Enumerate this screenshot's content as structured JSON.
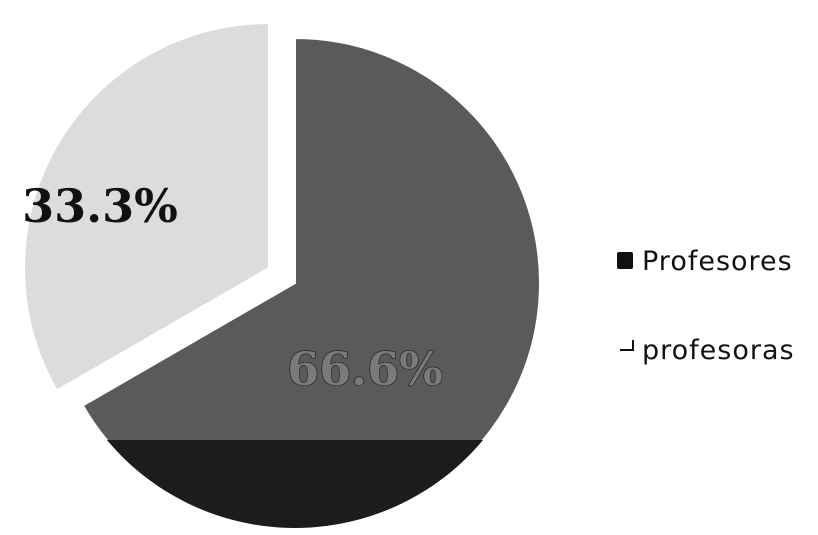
{
  "chart_data": {
    "type": "pie",
    "title": "",
    "slices": [
      {
        "label": "Profesores",
        "value": 66.6,
        "display": "66.6%",
        "color": "#5a5a5a"
      },
      {
        "label": "profesoras",
        "value": 33.3,
        "display": "33.3%",
        "color": "#dcdcdc"
      }
    ],
    "exploded": "profesoras",
    "legend_position": "right",
    "legend": [
      {
        "label": "Profesores",
        "marker": "filled"
      },
      {
        "label": "profesoras",
        "marker": "outline"
      }
    ]
  }
}
